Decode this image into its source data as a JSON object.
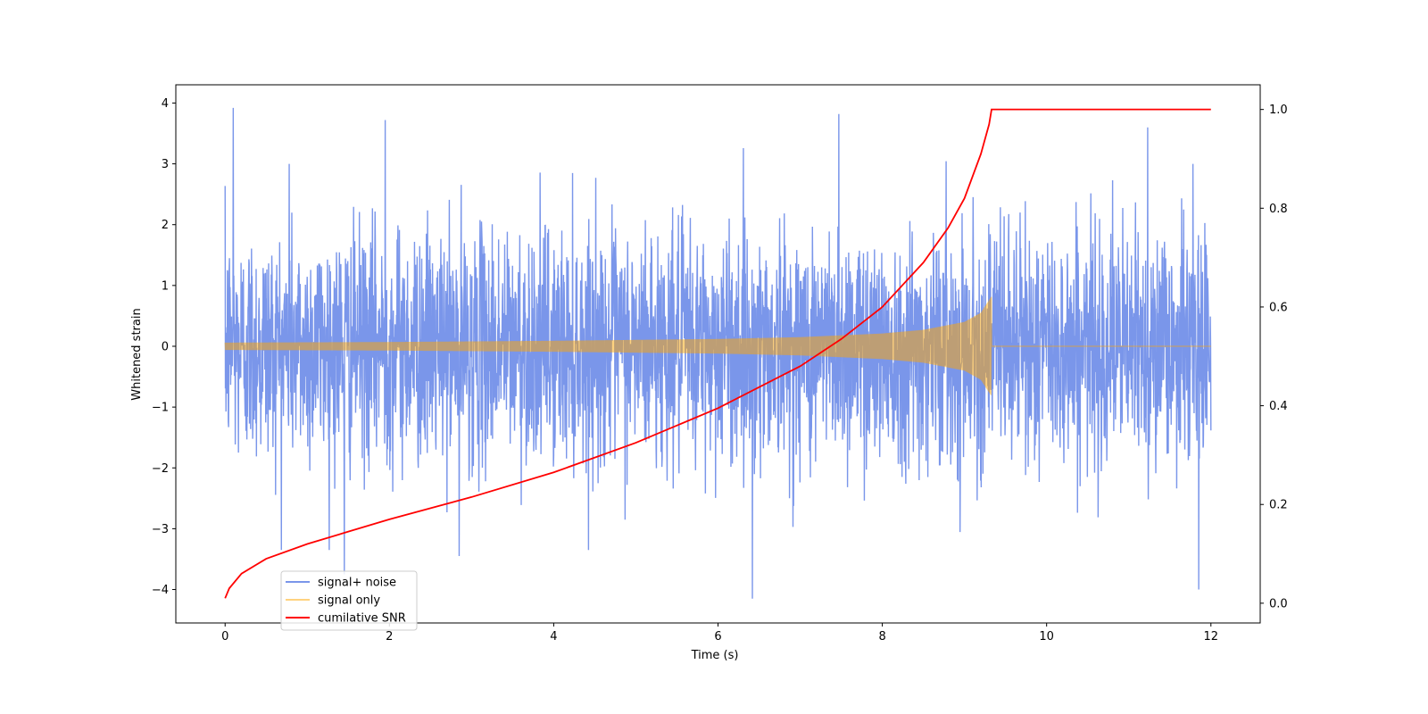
{
  "chart_data": {
    "type": "line",
    "title": "",
    "xlabel": "Time (s)",
    "ylabel": "Whitened strain",
    "y2label": "",
    "xlim": [
      -0.6,
      12.6
    ],
    "ylim": [
      -4.55,
      4.3
    ],
    "y2lim": [
      -0.04,
      1.05
    ],
    "xticks": [
      0,
      2,
      4,
      6,
      8,
      10,
      12
    ],
    "yticks": [
      4,
      3,
      2,
      1,
      0,
      -1,
      -2,
      -3,
      -4
    ],
    "y2ticks": [
      1.0,
      0.8,
      0.6,
      0.4,
      0.2,
      0.0
    ],
    "xtick_labels": [
      "0",
      "2",
      "4",
      "6",
      "8",
      "10",
      "12"
    ],
    "ytick_labels": [
      "4",
      "3",
      "2",
      "1",
      "0",
      "−1",
      "−2",
      "−3",
      "−4"
    ],
    "y2tick_labels": [
      "1.0",
      "0.8",
      "0.6",
      "0.4",
      "0.2",
      "0.0"
    ],
    "grid": false,
    "legend_position": "lower-left",
    "merger_time": 9.33,
    "series": [
      {
        "name": "signal+ noise",
        "axis": "left",
        "color": "#4169e1",
        "opacity": 0.7,
        "description": "noise band roughly between -2.7 and 2.7 with spikes up to about ±4",
        "x_range": [
          0,
          12
        ],
        "band_typical": [
          -2.2,
          2.3
        ],
        "notable_peaks": [
          [
            0.1,
            3.92
          ],
          [
            0.78,
            3.0
          ],
          [
            1.95,
            3.72
          ],
          [
            1.45,
            -3.75
          ],
          [
            2.85,
            -3.45
          ],
          [
            6.42,
            -4.15
          ],
          [
            7.47,
            3.82
          ],
          [
            11.23,
            3.6
          ],
          [
            11.85,
            -4.0
          ],
          [
            11.78,
            3.0
          ]
        ]
      },
      {
        "name": "signal only",
        "axis": "left",
        "color": "#ffa500",
        "opacity": 0.5,
        "description": "chirp with amplitude growing from about 0.05 to about 0.8 at t≈9.33 s, zero afterwards",
        "x_range": [
          0,
          12
        ],
        "envelope": [
          [
            0,
            0.06
          ],
          [
            2,
            0.07
          ],
          [
            4,
            0.09
          ],
          [
            6,
            0.12
          ],
          [
            7,
            0.15
          ],
          [
            8,
            0.21
          ],
          [
            8.5,
            0.27
          ],
          [
            9,
            0.4
          ],
          [
            9.2,
            0.55
          ],
          [
            9.33,
            0.82
          ]
        ]
      },
      {
        "name": "cumilative SNR",
        "axis": "right",
        "color": "#ff0000",
        "x": [
          0,
          0.05,
          0.2,
          0.5,
          1,
          1.5,
          2,
          3,
          4,
          5,
          6,
          7,
          7.5,
          8,
          8.5,
          8.8,
          9,
          9.2,
          9.3,
          9.33,
          10,
          11,
          12
        ],
        "values": [
          0.01,
          0.03,
          0.06,
          0.09,
          0.12,
          0.145,
          0.17,
          0.215,
          0.265,
          0.325,
          0.395,
          0.48,
          0.535,
          0.6,
          0.69,
          0.76,
          0.82,
          0.91,
          0.97,
          1.0,
          1.0,
          1.0,
          1.0
        ]
      }
    ]
  }
}
